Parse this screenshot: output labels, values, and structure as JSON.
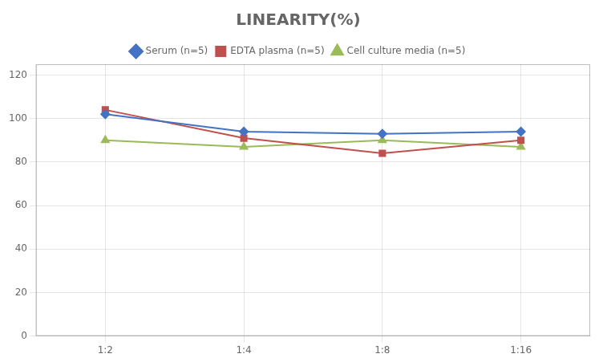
{
  "chart_data": {
    "type": "line",
    "title": "LINEARITY(%)",
    "categories": [
      "1:2",
      "1:4",
      "1:8",
      "1:16"
    ],
    "series": [
      {
        "name": "Serum (n=5)",
        "color": "#4472C4",
        "marker": "diamond",
        "values": [
          102,
          94,
          93,
          94
        ]
      },
      {
        "name": "EDTA plasma (n=5)",
        "color": "#C0504D",
        "marker": "square",
        "values": [
          104,
          91,
          84,
          90
        ]
      },
      {
        "name": "Cell culture media (n=5)",
        "color": "#9BBB59",
        "marker": "triangle",
        "values": [
          90,
          87,
          90,
          87
        ]
      }
    ],
    "ylim": [
      0,
      125
    ],
    "yticks": [
      0,
      20,
      40,
      60,
      80,
      100,
      120
    ],
    "grid": true,
    "legend": "top"
  }
}
